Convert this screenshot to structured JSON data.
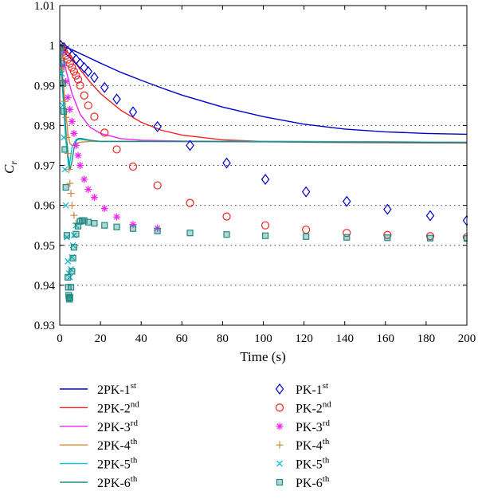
{
  "chart_data": {
    "type": "line",
    "xlabel": "Time (s)",
    "ylabel": {
      "main": "C",
      "sub": "r"
    },
    "xlim": [
      0,
      200
    ],
    "ylim": [
      0.93,
      1.01
    ],
    "xticks": [
      0,
      20,
      40,
      60,
      80,
      100,
      120,
      140,
      160,
      180,
      200
    ],
    "xtick_labels": [
      "0",
      "20",
      "40",
      "60",
      "80",
      "100",
      "120",
      "140",
      "160",
      "180",
      "200"
    ],
    "yticks": [
      0.93,
      0.94,
      0.95,
      0.96,
      0.97,
      0.98,
      0.99,
      1.0,
      1.01
    ],
    "ytick_labels": [
      "0.93",
      "0.94",
      "0.95",
      "0.96",
      "0.97",
      "0.98",
      "0.99",
      "1",
      "1.01"
    ],
    "grid": "horizontal dotted",
    "legend_position": "below",
    "lines": [
      {
        "name": "2PK-1",
        "sup": "st",
        "color": "#0000cc",
        "x": [
          0,
          5,
          10,
          20,
          30,
          40,
          50,
          60,
          80,
          100,
          120,
          140,
          160,
          180,
          200
        ],
        "y": [
          1.0,
          0.9992,
          0.998,
          0.9956,
          0.9933,
          0.9913,
          0.9894,
          0.9876,
          0.9846,
          0.9822,
          0.9803,
          0.9791,
          0.9784,
          0.978,
          0.9778
        ]
      },
      {
        "name": "2PK-2",
        "sup": "nd",
        "color": "#ee2222",
        "x": [
          0,
          5,
          10,
          15,
          20,
          30,
          40,
          50,
          60,
          80,
          100,
          120,
          150,
          200
        ],
        "y": [
          1.0,
          0.9978,
          0.994,
          0.9908,
          0.988,
          0.9838,
          0.9808,
          0.9788,
          0.9776,
          0.9764,
          0.976,
          0.9758,
          0.9757,
          0.9756
        ]
      },
      {
        "name": "2PK-3",
        "sup": "rd",
        "color": "#ee22ee",
        "x": [
          0,
          3,
          6,
          10,
          15,
          20,
          30,
          40,
          60,
          100,
          200
        ],
        "y": [
          1.0,
          0.994,
          0.988,
          0.9828,
          0.9795,
          0.978,
          0.9767,
          0.9763,
          0.9761,
          0.976,
          0.9758
        ]
      },
      {
        "name": "2PK-4",
        "sup": "th",
        "color": "#dd8833",
        "x": [
          0,
          2,
          4,
          5,
          6,
          8,
          10,
          15,
          20,
          40,
          100,
          200
        ],
        "y": [
          1.0,
          0.989,
          0.978,
          0.9755,
          0.975,
          0.9755,
          0.9758,
          0.976,
          0.976,
          0.976,
          0.976,
          0.9758
        ]
      },
      {
        "name": "2PK-5",
        "sup": "th",
        "color": "#00ccdd",
        "x": [
          0,
          1.5,
          3,
          4.5,
          6,
          8,
          10,
          15,
          20,
          40,
          100,
          200
        ],
        "y": [
          1.0,
          0.988,
          0.976,
          0.969,
          0.9745,
          0.9765,
          0.9765,
          0.9762,
          0.976,
          0.976,
          0.976,
          0.9758
        ]
      },
      {
        "name": "2PK-6",
        "sup": "th",
        "color": "#208a80",
        "x": [
          0,
          1,
          2,
          3,
          4,
          5,
          6,
          7,
          8,
          9,
          10,
          12,
          15,
          20,
          40,
          100,
          200
        ],
        "y": [
          1.0,
          0.9935,
          0.986,
          0.979,
          0.973,
          0.9688,
          0.971,
          0.9742,
          0.976,
          0.9767,
          0.9768,
          0.9766,
          0.9763,
          0.976,
          0.976,
          0.9759,
          0.9757
        ]
      }
    ],
    "markers": [
      {
        "name": "PK-1",
        "sup": "st",
        "symbol": "diamond",
        "color": "#0000cc",
        "x": [
          0.5,
          2,
          4,
          6,
          8,
          10,
          12,
          14,
          17,
          22,
          28,
          36,
          48,
          64,
          82,
          101,
          121,
          141,
          161,
          182,
          200
        ],
        "y": [
          1.0,
          0.9995,
          0.9985,
          0.9975,
          0.9965,
          0.9955,
          0.9945,
          0.9935,
          0.992,
          0.9895,
          0.9866,
          0.9834,
          0.9797,
          0.975,
          0.9706,
          0.9665,
          0.9634,
          0.961,
          0.959,
          0.9574,
          0.9562
        ]
      },
      {
        "name": "PK-2",
        "sup": "nd",
        "symbol": "circle",
        "color": "#ee2222",
        "x": [
          1,
          2,
          3,
          4,
          5,
          6,
          7,
          8,
          9,
          10,
          12,
          14,
          17,
          22,
          28,
          36,
          48,
          64,
          82,
          101,
          121,
          141,
          161,
          182,
          200
        ],
        "y": [
          0.9995,
          0.9985,
          0.9975,
          0.9965,
          0.9955,
          0.9945,
          0.9935,
          0.9925,
          0.9915,
          0.99,
          0.9875,
          0.985,
          0.9822,
          0.9782,
          0.974,
          0.9697,
          0.965,
          0.9606,
          0.9572,
          0.955,
          0.9539,
          0.9531,
          0.9526,
          0.9523,
          0.952
        ]
      },
      {
        "name": "PK-3",
        "sup": "rd",
        "symbol": "asterisk",
        "color": "#ee22ee",
        "x": [
          1,
          2,
          3,
          4,
          5,
          6,
          7,
          8,
          9,
          10,
          12,
          14,
          17,
          22,
          28,
          36,
          48
        ],
        "y": [
          0.9985,
          0.995,
          0.991,
          0.987,
          0.984,
          0.981,
          0.978,
          0.975,
          0.9725,
          0.97,
          0.9665,
          0.964,
          0.962,
          0.9592,
          0.9571,
          0.9552,
          0.9543
        ]
      },
      {
        "name": "PK-4",
        "sup": "th",
        "symbol": "plus",
        "color": "#cc8844",
        "x": [
          0.5,
          1,
          1.5,
          2,
          2.5,
          3,
          3.5,
          4,
          4.5,
          5,
          5.5,
          6,
          7,
          8
        ],
        "y": [
          0.999,
          0.997,
          0.994,
          0.99,
          0.986,
          0.982,
          0.977,
          0.973,
          0.969,
          0.9655,
          0.963,
          0.96,
          0.9575,
          0.9555
        ]
      },
      {
        "name": "PK-5",
        "sup": "th",
        "symbol": "cross",
        "color": "#00bbdd",
        "x": [
          0.5,
          1,
          1.5,
          2,
          2.5,
          3,
          3.5,
          4,
          4.5,
          5,
          5.5,
          6,
          6.5,
          7,
          8
        ],
        "y": [
          0.998,
          0.993,
          0.985,
          0.977,
          0.969,
          0.96,
          0.952,
          0.946,
          0.943,
          0.942,
          0.944,
          0.947,
          0.95,
          0.9525,
          0.955
        ]
      },
      {
        "name": "PK-6",
        "sup": "th",
        "symbol": "square",
        "color": "#208a80",
        "x": [
          0.5,
          1,
          1.5,
          2,
          2.5,
          3,
          3.5,
          4,
          4.2,
          4.4,
          4.6,
          4.8,
          5,
          5.5,
          6,
          6.5,
          7,
          8,
          9,
          10,
          11,
          12,
          14,
          17,
          22,
          28,
          36,
          48,
          64,
          82,
          101,
          121,
          141,
          161,
          182,
          200
        ],
        "y": [
          0.9995,
          0.9955,
          0.9905,
          0.9835,
          0.974,
          0.9645,
          0.9525,
          0.942,
          0.9395,
          0.9375,
          0.9368,
          0.9365,
          0.937,
          0.9395,
          0.9435,
          0.9468,
          0.9495,
          0.9528,
          0.9548,
          0.956,
          0.9562,
          0.9562,
          0.9558,
          0.9555,
          0.955,
          0.9546,
          0.9542,
          0.9536,
          0.9531,
          0.9527,
          0.9524,
          0.9522,
          0.952,
          0.9519,
          0.9518,
          0.9517
        ]
      }
    ]
  }
}
